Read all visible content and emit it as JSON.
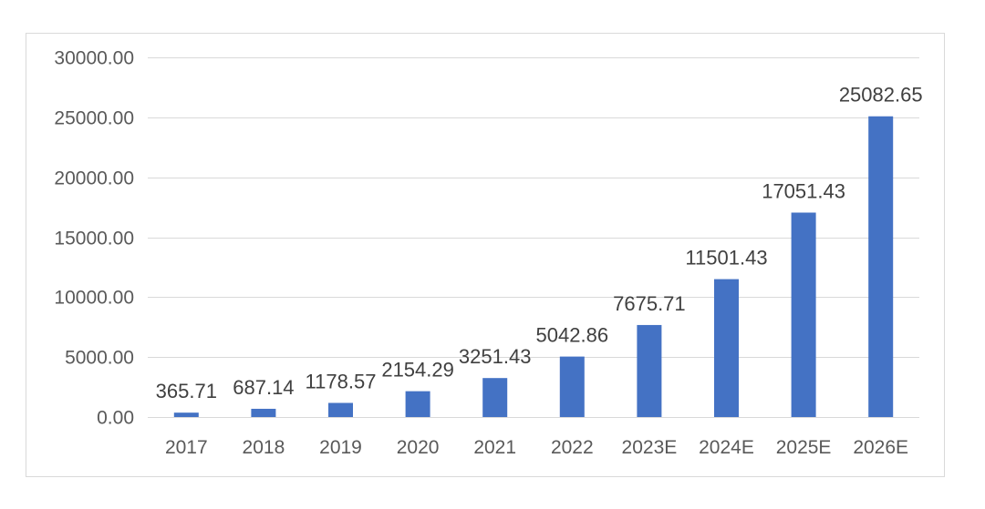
{
  "chart_data": {
    "type": "bar",
    "title": "",
    "xlabel": "",
    "ylabel": "",
    "categories": [
      "2017",
      "2018",
      "2019",
      "2020",
      "2021",
      "2022",
      "2023E",
      "2024E",
      "2025E",
      "2026E"
    ],
    "values": [
      365.71,
      687.14,
      1178.57,
      2154.29,
      3251.43,
      5042.86,
      7675.71,
      11501.43,
      17051.43,
      25082.65
    ],
    "data_labels": [
      "365.71",
      "687.14",
      "1178.57",
      "2154.29",
      "3251.43",
      "5042.86",
      "7675.71",
      "11501.43",
      "17051.43",
      "25082.65"
    ],
    "ylim": [
      0,
      30000
    ],
    "yticks": [
      "0.00",
      "5000.00",
      "10000.00",
      "15000.00",
      "20000.00",
      "25000.00",
      "30000.00"
    ],
    "grid": true,
    "legend": "none",
    "colors": {
      "bar": "#4472c4",
      "grid": "#d9d9d9",
      "axis_text": "#595959",
      "label_text": "#404040"
    }
  }
}
